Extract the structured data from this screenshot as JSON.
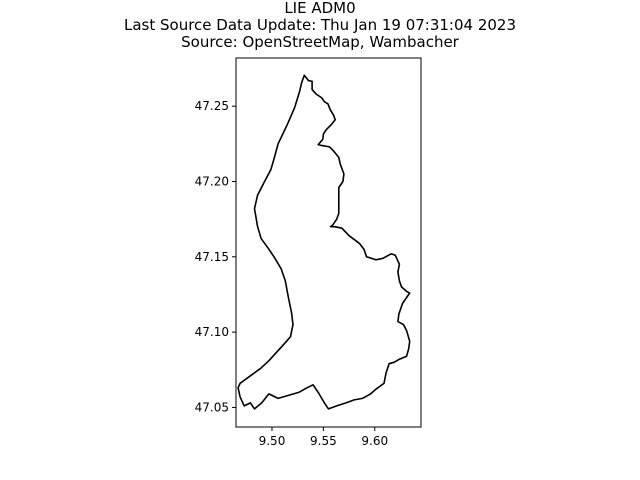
{
  "title": {
    "line1": "LIE ADM0",
    "line2": "Last Source Data Update: Thu Jan 19 07:31:04 2023",
    "line3": "Source: OpenStreetMap, Wambacher"
  },
  "map": {
    "feature_name": "LIE ADM0",
    "xlim": [
      9.465,
      9.645
    ],
    "ylim": [
      47.037,
      47.282
    ],
    "xticks": [
      9.5,
      9.55,
      9.6
    ],
    "xtick_labels": [
      "9.50",
      "9.55",
      "9.60"
    ],
    "yticks": [
      47.05,
      47.1,
      47.15,
      47.2,
      47.25
    ],
    "ytick_labels": [
      "47.05",
      "47.10",
      "47.15",
      "47.20",
      "47.25"
    ],
    "stroke_color": "#000000",
    "boundary": [
      [
        9.5315,
        47.2705
      ],
      [
        9.5355,
        47.267
      ],
      [
        9.539,
        47.2665
      ],
      [
        9.539,
        47.261
      ],
      [
        9.543,
        47.258
      ],
      [
        9.5485,
        47.2555
      ],
      [
        9.551,
        47.253
      ],
      [
        9.5545,
        47.2515
      ],
      [
        9.5565,
        47.248
      ],
      [
        9.56,
        47.244
      ],
      [
        9.5615,
        47.241
      ],
      [
        9.558,
        47.238
      ],
      [
        9.553,
        47.2345
      ],
      [
        9.55,
        47.2315
      ],
      [
        9.5495,
        47.228
      ],
      [
        9.545,
        47.2245
      ],
      [
        9.548,
        47.224
      ],
      [
        9.552,
        47.2235
      ],
      [
        9.556,
        47.223
      ],
      [
        9.559,
        47.221
      ],
      [
        9.562,
        47.2185
      ],
      [
        9.565,
        47.216
      ],
      [
        9.5665,
        47.2115
      ],
      [
        9.57,
        47.205
      ],
      [
        9.569,
        47.2
      ],
      [
        9.565,
        47.196
      ],
      [
        9.565,
        47.191
      ],
      [
        9.565,
        47.185
      ],
      [
        9.565,
        47.179
      ],
      [
        9.563,
        47.175
      ],
      [
        9.559,
        47.171
      ],
      [
        9.557,
        47.17
      ],
      [
        9.561,
        47.17
      ],
      [
        9.568,
        47.169
      ],
      [
        9.575,
        47.164
      ],
      [
        9.585,
        47.159
      ],
      [
        9.5895,
        47.155
      ],
      [
        9.592,
        47.15
      ],
      [
        9.601,
        47.148
      ],
      [
        9.608,
        47.149
      ],
      [
        9.616,
        47.152
      ],
      [
        9.62,
        47.151
      ],
      [
        9.624,
        47.145
      ],
      [
        9.6225,
        47.14
      ],
      [
        9.624,
        47.134
      ],
      [
        9.626,
        47.13
      ],
      [
        9.631,
        47.127
      ],
      [
        9.634,
        47.126
      ],
      [
        9.631,
        47.123
      ],
      [
        9.627,
        47.119
      ],
      [
        9.6235,
        47.112
      ],
      [
        9.6225,
        47.107
      ],
      [
        9.628,
        47.105
      ],
      [
        9.631,
        47.101
      ],
      [
        9.634,
        47.094
      ],
      [
        9.633,
        47.089
      ],
      [
        9.631,
        47.084
      ],
      [
        9.624,
        47.082
      ],
      [
        9.619,
        47.08
      ],
      [
        9.614,
        47.079
      ],
      [
        9.611,
        47.073
      ],
      [
        9.609,
        47.066
      ],
      [
        9.601,
        47.062
      ],
      [
        9.596,
        47.059
      ],
      [
        9.588,
        47.056
      ],
      [
        9.58,
        47.055
      ],
      [
        9.572,
        47.053
      ],
      [
        9.563,
        47.051
      ],
      [
        9.555,
        47.049
      ],
      [
        9.551,
        47.053
      ],
      [
        9.545,
        47.06
      ],
      [
        9.54,
        47.065
      ],
      [
        9.534,
        47.063
      ],
      [
        9.526,
        47.06
      ],
      [
        9.516,
        47.058
      ],
      [
        9.506,
        47.056
      ],
      [
        9.497,
        47.059
      ],
      [
        9.49,
        47.053
      ],
      [
        9.483,
        47.049
      ],
      [
        9.479,
        47.053
      ],
      [
        9.473,
        47.051
      ],
      [
        9.469,
        47.057
      ],
      [
        9.467,
        47.063
      ],
      [
        9.469,
        47.066
      ],
      [
        9.479,
        47.071
      ],
      [
        9.489,
        47.076
      ],
      [
        9.497,
        47.081
      ],
      [
        9.505,
        47.087
      ],
      [
        9.513,
        47.093
      ],
      [
        9.518,
        47.097
      ],
      [
        9.5205,
        47.105
      ],
      [
        9.519,
        47.113
      ],
      [
        9.516,
        47.123
      ],
      [
        9.513,
        47.134
      ],
      [
        9.509,
        47.142
      ],
      [
        9.502,
        47.15
      ],
      [
        9.496,
        47.156
      ],
      [
        9.4895,
        47.162
      ],
      [
        9.486,
        47.17
      ],
      [
        9.483,
        47.182
      ],
      [
        9.486,
        47.191
      ],
      [
        9.492,
        47.199
      ],
      [
        9.499,
        47.208
      ],
      [
        9.502,
        47.215
      ],
      [
        9.506,
        47.225
      ],
      [
        9.515,
        47.238
      ],
      [
        9.522,
        47.249
      ],
      [
        9.527,
        47.26
      ],
      [
        9.529,
        47.266
      ],
      [
        9.5315,
        47.2705
      ]
    ]
  }
}
